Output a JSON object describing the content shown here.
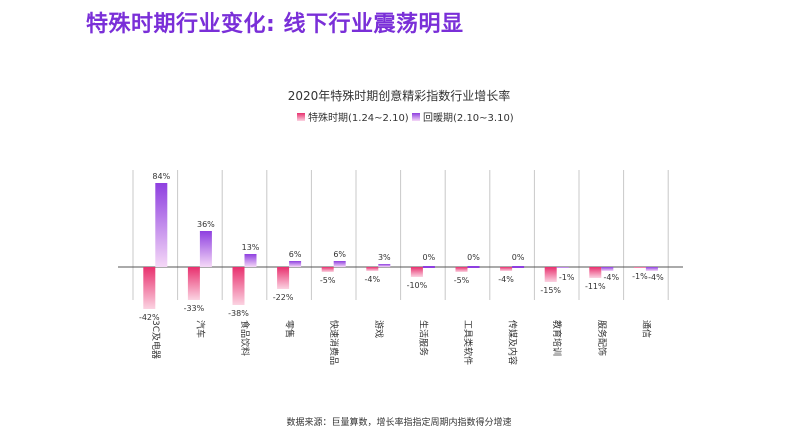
{
  "page": {
    "title": "特殊时期行业变化: 线下行业震荡明显"
  },
  "source_note": "数据来源：巨量算数，增长率指指定周期内指数得分增速",
  "colors": {
    "series1_top": "#e8306e",
    "series1_bottom": "#fbd3e2",
    "series2_top": "#8e3fe0",
    "series2_bottom": "#f5d8f7",
    "axis": "#555555",
    "grid": "#c8c8c8",
    "title": "#7a2fd8"
  },
  "chart_data": {
    "type": "bar",
    "title": "2020年特殊时期创意精彩指数行业增长率",
    "legend_position": "top-center",
    "categories": [
      "3C及电器",
      "汽车",
      "食品饮料",
      "零售",
      "快速消费品",
      "游戏",
      "生活服务",
      "工具类软件",
      "传媒及内容",
      "教育培训",
      "服务配饰",
      "通信"
    ],
    "series": [
      {
        "name": "特殊时期(1.24~2.10)",
        "values": [
          -42,
          -33,
          -38,
          -22,
          -5,
          -4,
          -10,
          -5,
          -4,
          -15,
          -11,
          -1
        ],
        "labels": [
          "-42%",
          "-33%",
          "-38%",
          "-22%",
          "-5%",
          "-4%",
          "-10%",
          "-5%",
          "-4%",
          "-15%",
          "-11%",
          "-1%"
        ]
      },
      {
        "name": "回暖期(2.10~3.10)",
        "values": [
          84,
          36,
          13,
          6,
          6,
          3,
          0,
          0,
          0,
          -1,
          -4,
          -4
        ],
        "labels": [
          "84%",
          "36%",
          "13%",
          "6%",
          "6%",
          "3%",
          "0%",
          "0%",
          "0%",
          "-1%",
          "-4%",
          "-4%"
        ]
      }
    ],
    "ylim": [
      -45,
      90
    ],
    "grid": "vertical separators"
  }
}
